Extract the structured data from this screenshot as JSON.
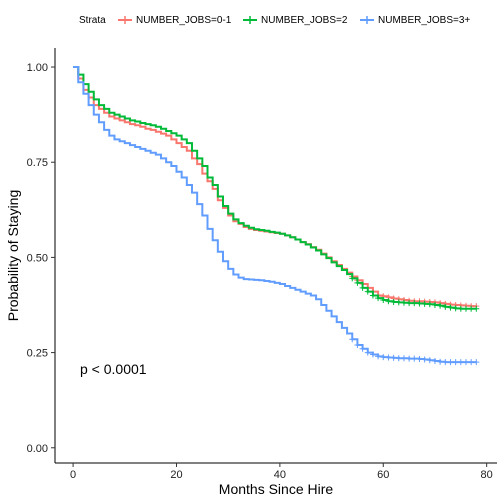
{
  "chart_data": {
    "type": "line",
    "step": "post",
    "xlabel": "Months Since Hire",
    "ylabel": "Probability of Staying",
    "xlim": [
      -3.5,
      82
    ],
    "ylim": [
      -0.04,
      1.05
    ],
    "x_ticks": [
      0,
      20,
      40,
      60,
      80
    ],
    "y_ticks": [
      0.0,
      0.25,
      0.5,
      0.75,
      1.0
    ],
    "y_tick_labels": [
      "0.00",
      "0.25",
      "0.50",
      "0.75",
      "1.00"
    ],
    "grid": false,
    "legend": {
      "position": "top",
      "title": "Strata",
      "entries": [
        "NUMBER_JOBS=0-1",
        "NUMBER_JOBS=2",
        "NUMBER_JOBS=3+"
      ]
    },
    "annotation": "p < 0.0001",
    "series": [
      {
        "name": "NUMBER_JOBS=0-1",
        "color": "#F8766D",
        "x": [
          0,
          1,
          2,
          3,
          4,
          5,
          6,
          7,
          8,
          9,
          10,
          11,
          12,
          13,
          14,
          15,
          16,
          17,
          18,
          19,
          20,
          21,
          22,
          23,
          24,
          25,
          26,
          27,
          28,
          29,
          30,
          31,
          32,
          33,
          34,
          35,
          36,
          37,
          38,
          39,
          40,
          41,
          42,
          43,
          44,
          45,
          46,
          47,
          48,
          49,
          50,
          51,
          52,
          53,
          54,
          55,
          56,
          57,
          58,
          59,
          60,
          61,
          62,
          63,
          64,
          65,
          66,
          67,
          68,
          69,
          70,
          71,
          72,
          73,
          74,
          75,
          76,
          77,
          78
        ],
        "y": [
          1.0,
          0.97,
          0.94,
          0.92,
          0.9,
          0.89,
          0.88,
          0.87,
          0.865,
          0.86,
          0.855,
          0.85,
          0.847,
          0.843,
          0.838,
          0.835,
          0.83,
          0.825,
          0.82,
          0.81,
          0.8,
          0.79,
          0.78,
          0.76,
          0.745,
          0.72,
          0.7,
          0.68,
          0.65,
          0.63,
          0.61,
          0.595,
          0.588,
          0.58,
          0.575,
          0.572,
          0.57,
          0.568,
          0.566,
          0.564,
          0.562,
          0.558,
          0.553,
          0.547,
          0.54,
          0.535,
          0.527,
          0.52,
          0.51,
          0.5,
          0.49,
          0.48,
          0.47,
          0.46,
          0.45,
          0.44,
          0.43,
          0.42,
          0.41,
          0.4,
          0.398,
          0.395,
          0.392,
          0.39,
          0.388,
          0.386,
          0.385,
          0.385,
          0.384,
          0.383,
          0.382,
          0.38,
          0.378,
          0.376,
          0.375,
          0.374,
          0.373,
          0.372,
          0.372
        ]
      },
      {
        "name": "NUMBER_JOBS=2",
        "color": "#00BA38",
        "x": [
          0,
          1,
          2,
          3,
          4,
          5,
          6,
          7,
          8,
          9,
          10,
          11,
          12,
          13,
          14,
          15,
          16,
          17,
          18,
          19,
          20,
          21,
          22,
          23,
          24,
          25,
          26,
          27,
          28,
          29,
          30,
          31,
          32,
          33,
          34,
          35,
          36,
          37,
          38,
          39,
          40,
          41,
          42,
          43,
          44,
          45,
          46,
          47,
          48,
          49,
          50,
          51,
          52,
          53,
          54,
          55,
          56,
          57,
          58,
          59,
          60,
          61,
          62,
          63,
          64,
          65,
          66,
          67,
          68,
          69,
          70,
          71,
          72,
          73,
          74,
          75,
          76,
          77,
          78
        ],
        "y": [
          1.0,
          0.98,
          0.955,
          0.935,
          0.915,
          0.9,
          0.89,
          0.88,
          0.875,
          0.87,
          0.865,
          0.86,
          0.857,
          0.853,
          0.85,
          0.847,
          0.843,
          0.838,
          0.832,
          0.826,
          0.82,
          0.81,
          0.8,
          0.78,
          0.76,
          0.74,
          0.71,
          0.69,
          0.66,
          0.635,
          0.615,
          0.6,
          0.59,
          0.583,
          0.578,
          0.574,
          0.572,
          0.57,
          0.567,
          0.565,
          0.562,
          0.558,
          0.553,
          0.547,
          0.54,
          0.534,
          0.526,
          0.518,
          0.508,
          0.498,
          0.487,
          0.477,
          0.467,
          0.456,
          0.445,
          0.433,
          0.42,
          0.41,
          0.4,
          0.393,
          0.388,
          0.385,
          0.383,
          0.382,
          0.381,
          0.38,
          0.38,
          0.379,
          0.378,
          0.377,
          0.375,
          0.373,
          0.37,
          0.368,
          0.366,
          0.365,
          0.365,
          0.365,
          0.365
        ]
      },
      {
        "name": "NUMBER_JOBS=3+",
        "color": "#619CFF",
        "x": [
          0,
          1,
          2,
          3,
          4,
          5,
          6,
          7,
          8,
          9,
          10,
          11,
          12,
          13,
          14,
          15,
          16,
          17,
          18,
          19,
          20,
          21,
          22,
          23,
          24,
          25,
          26,
          27,
          28,
          29,
          30,
          31,
          32,
          33,
          34,
          35,
          36,
          37,
          38,
          39,
          40,
          41,
          42,
          43,
          44,
          45,
          46,
          47,
          48,
          49,
          50,
          51,
          52,
          53,
          54,
          55,
          56,
          57,
          58,
          59,
          60,
          61,
          62,
          63,
          64,
          65,
          66,
          67,
          68,
          69,
          70,
          71,
          72,
          73,
          74,
          75,
          76,
          77,
          78
        ],
        "y": [
          1.0,
          0.96,
          0.93,
          0.9,
          0.875,
          0.855,
          0.835,
          0.82,
          0.81,
          0.805,
          0.8,
          0.795,
          0.79,
          0.785,
          0.78,
          0.775,
          0.77,
          0.76,
          0.75,
          0.74,
          0.725,
          0.71,
          0.69,
          0.67,
          0.64,
          0.61,
          0.575,
          0.545,
          0.515,
          0.49,
          0.47,
          0.455,
          0.447,
          0.443,
          0.442,
          0.441,
          0.44,
          0.438,
          0.436,
          0.433,
          0.43,
          0.425,
          0.42,
          0.415,
          0.41,
          0.405,
          0.4,
          0.39,
          0.375,
          0.36,
          0.345,
          0.33,
          0.315,
          0.3,
          0.285,
          0.27,
          0.26,
          0.25,
          0.245,
          0.24,
          0.238,
          0.237,
          0.236,
          0.235,
          0.235,
          0.234,
          0.234,
          0.233,
          0.232,
          0.23,
          0.228,
          0.226,
          0.225,
          0.225,
          0.225,
          0.225,
          0.225,
          0.225,
          0.225
        ]
      }
    ]
  }
}
